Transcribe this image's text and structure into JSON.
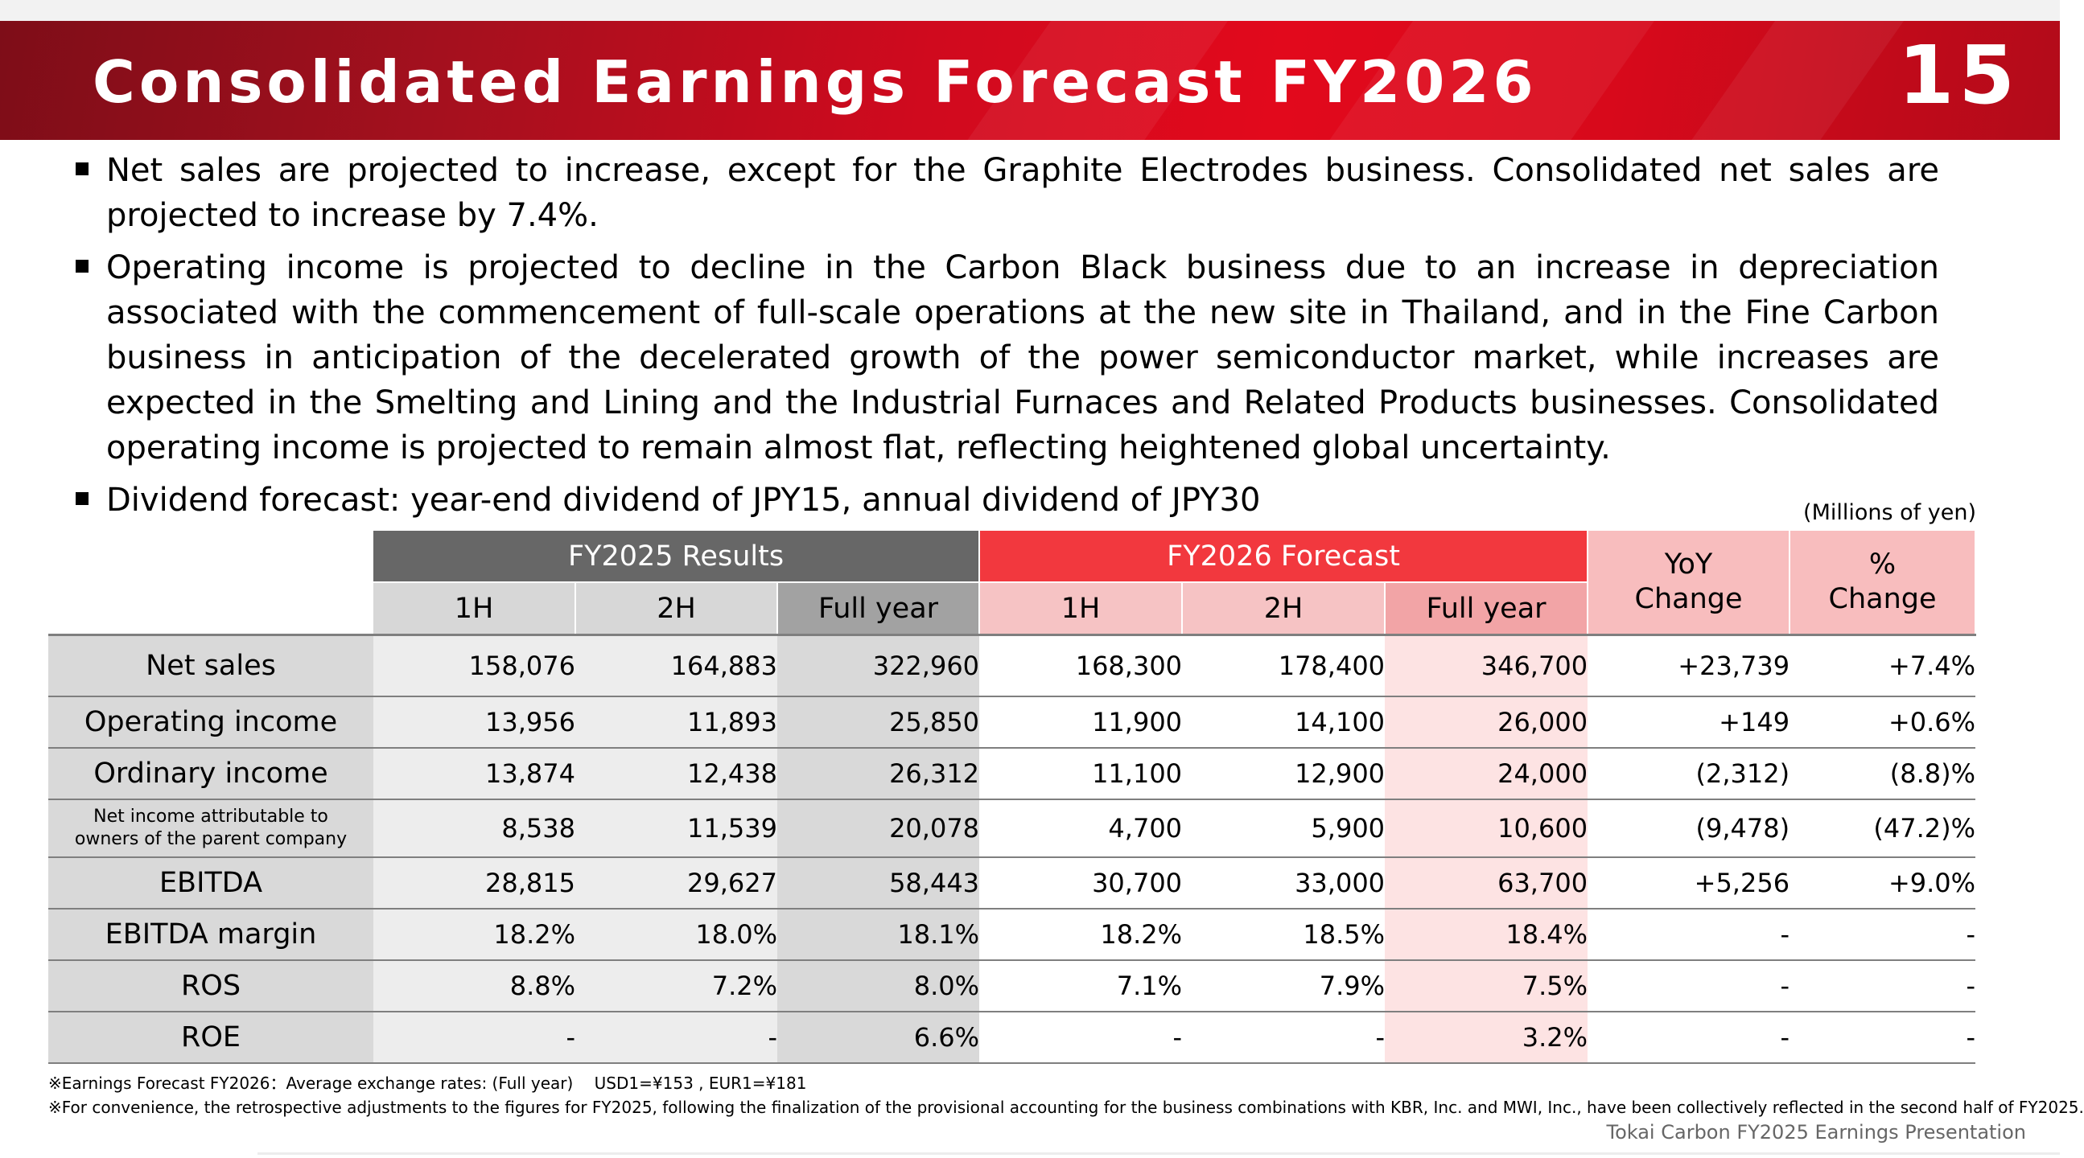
{
  "header": {
    "title": "Consolidated Earnings Forecast FY2026",
    "page_number": "15",
    "accent_color": "#e2091c"
  },
  "bullets": [
    "Net sales are projected to increase, except for the Graphite Electrodes business. Consolidated net sales are projected to increase by 7.4%.",
    "Operating income is projected to decline in the Carbon Black business due to an increase in depreciation associated with the commencement of full-scale operations at the new site in Thailand, and in the Fine Carbon business in anticipation of the decelerated growth of the power semiconductor market, while increases are expected in the Smelting and Lining and the Industrial Furnaces and Related Products businesses. Consolidated operating income is projected to remain almost flat, reflecting heightened global uncertainty.",
    "Dividend forecast: year-end dividend of JPY15, annual dividend of JPY30"
  ],
  "table": {
    "units": "(Millions of yen)",
    "group_fy2025": "FY2025 Results",
    "group_fy2026": "FY2026 Forecast",
    "yoy_line1": "YoY",
    "yoy_line2": "Change",
    "pct_line1": "%",
    "pct_line2": "Change",
    "sub_1h": "1H",
    "sub_2h": "2H",
    "sub_full": "Full year",
    "rows": [
      {
        "label": "Net sales",
        "fy25_1h": "158,076",
        "fy25_2h": "164,883",
        "fy25_full": "322,960",
        "fy26_1h": "168,300",
        "fy26_2h": "178,400",
        "fy26_full": "346,700",
        "yoy": "+23,739",
        "pct": "+7.4%"
      },
      {
        "label": "Operating income",
        "fy25_1h": "13,956",
        "fy25_2h": "11,893",
        "fy25_full": "25,850",
        "fy26_1h": "11,900",
        "fy26_2h": "14,100",
        "fy26_full": "26,000",
        "yoy": "+149",
        "pct": "+0.6%"
      },
      {
        "label": "Ordinary income",
        "fy25_1h": "13,874",
        "fy25_2h": "12,438",
        "fy25_full": "26,312",
        "fy26_1h": "11,100",
        "fy26_2h": "12,900",
        "fy26_full": "24,000",
        "yoy": "(2,312)",
        "pct": "(8.8)%"
      },
      {
        "label_line1": "Net income attributable to",
        "label_line2": "owners of the parent company",
        "fy25_1h": "8,538",
        "fy25_2h": "11,539",
        "fy25_full": "20,078",
        "fy26_1h": "4,700",
        "fy26_2h": "5,900",
        "fy26_full": "10,600",
        "yoy": "(9,478)",
        "pct": "(47.2)%"
      },
      {
        "label": "EBITDA",
        "fy25_1h": "28,815",
        "fy25_2h": "29,627",
        "fy25_full": "58,443",
        "fy26_1h": "30,700",
        "fy26_2h": "33,000",
        "fy26_full": "63,700",
        "yoy": "+5,256",
        "pct": "+9.0%"
      },
      {
        "label": "EBITDA margin",
        "fy25_1h": "18.2%",
        "fy25_2h": "18.0%",
        "fy25_full": "18.1%",
        "fy26_1h": "18.2%",
        "fy26_2h": "18.5%",
        "fy26_full": "18.4%",
        "yoy": "-",
        "pct": "-"
      },
      {
        "label": "ROS",
        "fy25_1h": "8.8%",
        "fy25_2h": "7.2%",
        "fy25_full": "8.0%",
        "fy26_1h": "7.1%",
        "fy26_2h": "7.9%",
        "fy26_full": "7.5%",
        "yoy": "-",
        "pct": "-"
      },
      {
        "label": "ROE",
        "fy25_1h": "-",
        "fy25_2h": "-",
        "fy25_full": "6.6%",
        "fy26_1h": "-",
        "fy26_2h": "-",
        "fy26_full": "3.2%",
        "yoy": "-",
        "pct": "-"
      }
    ]
  },
  "notes": [
    "※Earnings Forecast FY2026：Average exchange rates: (Full year)　 USD1=¥153 , EUR1=¥181",
    "※For convenience, the retrospective adjustments to the figures for FY2025, following the finalization of the provisional accounting for the business combinations with KBR, Inc. and MWI, Inc., have been collectively reflected in the second half of FY2025."
  ],
  "footer": "Tokai Carbon FY2025 Earnings Presentation"
}
